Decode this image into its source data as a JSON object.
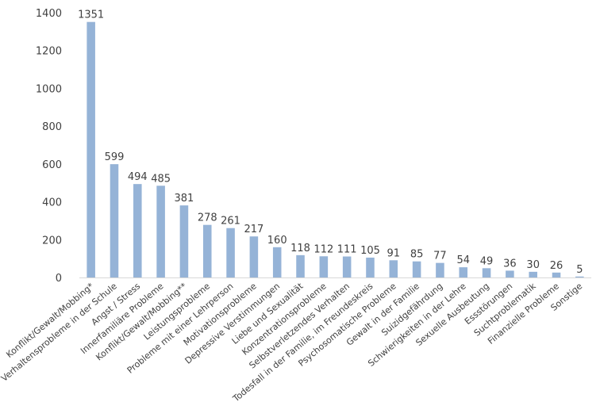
{
  "chart_data": {
    "type": "bar",
    "categories": [
      "Konflikt/Gewalt/Mobbing*",
      "Verhaltensprobleme in der Schule",
      "Angst / Stress",
      "Innerfamiliäre Probleme",
      "Konflikt/Gewalt/Mobbing**",
      "Leistungsprobleme",
      "Probleme mit einer Lehrperson",
      "Motivationsprobleme",
      "Depressive Verstimmungen",
      "Liebe und Sexualität",
      "Konzentrationsprobleme",
      "Selbstverletzendes Verhalten",
      "Todesfall in der Familie, im Freundeskreis",
      "Psychosomatische Probleme",
      "Gewalt in der Familie",
      "Suizidgefährdung",
      "Schwierigkeiten in der Lehre",
      "Sexuelle Ausbeutung",
      "Essstörungen",
      "Suchtproblematik",
      "Finanzielle Probleme",
      "Sonstige"
    ],
    "values": [
      1351,
      599,
      494,
      485,
      381,
      278,
      261,
      217,
      160,
      118,
      112,
      111,
      105,
      91,
      85,
      77,
      54,
      49,
      36,
      30,
      26,
      5
    ],
    "ylim": [
      0,
      1400
    ],
    "yticks": [
      0,
      200,
      400,
      600,
      800,
      1000,
      1200,
      1400
    ],
    "bar_color": "#95b3d7",
    "grid": false,
    "legend": "none",
    "data_labels": true
  }
}
